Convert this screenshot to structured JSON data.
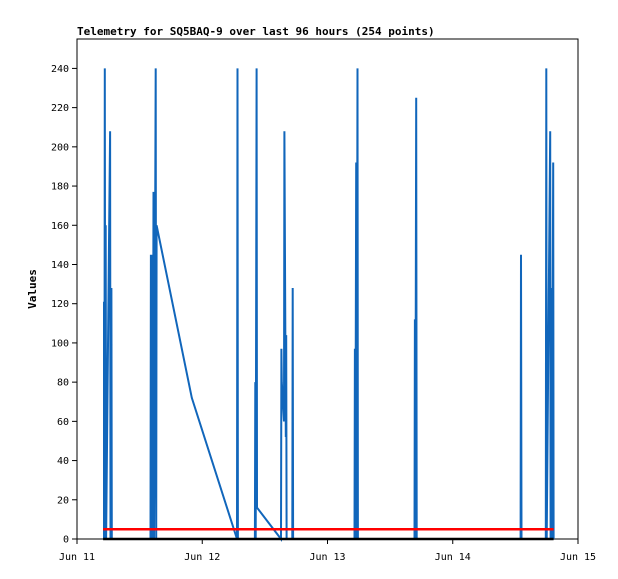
{
  "chart_data": {
    "type": "line",
    "title": "Telemetry for SQ5BAQ-9 over last 96 hours (254 points)",
    "xlabel": "",
    "ylabel": "Values",
    "x_ticks": [
      "Jun 11",
      "Jun 12",
      "Jun 13",
      "Jun 14",
      "Jun 15"
    ],
    "xlim": [
      "2024-06-11T00:00",
      "2024-06-15T00:00"
    ],
    "ylim": [
      0,
      255
    ],
    "y_ticks": [
      0,
      20,
      40,
      60,
      80,
      100,
      120,
      140,
      160,
      180,
      200,
      220,
      240
    ],
    "grid": false,
    "legend": "none",
    "series": [
      {
        "color": "#1166bb",
        "points": [
          [
            "2024-06-11T05:10",
            0
          ],
          [
            "2024-06-11T05:10",
            121
          ],
          [
            "2024-06-11T05:15",
            0
          ],
          [
            "2024-06-11T05:20",
            240
          ],
          [
            "2024-06-11T05:25",
            0
          ],
          [
            "2024-06-11T05:30",
            160
          ],
          [
            "2024-06-11T05:35",
            0
          ],
          [
            "2024-06-11T06:20",
            208
          ],
          [
            "2024-06-11T06:25",
            0
          ],
          [
            "2024-06-11T06:35",
            128
          ],
          [
            "2024-06-11T06:40",
            0
          ],
          [
            "2024-06-11T14:05",
            0
          ],
          [
            "2024-06-11T14:10",
            145
          ],
          [
            "2024-06-11T14:15",
            0
          ],
          [
            "2024-06-11T14:25",
            145
          ],
          [
            "2024-06-11T14:30",
            0
          ],
          [
            "2024-06-11T14:40",
            177
          ],
          [
            "2024-06-11T14:45",
            0
          ],
          [
            "2024-06-11T15:05",
            240
          ],
          [
            "2024-06-11T15:10",
            0
          ],
          [
            "2024-06-11T15:15",
            160
          ],
          [
            "2024-06-11T22:00",
            72
          ],
          [
            "2024-06-12T06:40",
            0
          ],
          [
            "2024-06-12T06:45",
            240
          ],
          [
            "2024-06-12T06:50",
            0
          ],
          [
            "2024-06-12T10:05",
            0
          ],
          [
            "2024-06-12T10:10",
            80
          ],
          [
            "2024-06-12T10:15",
            0
          ],
          [
            "2024-06-12T10:25",
            240
          ],
          [
            "2024-06-12T10:30",
            16
          ],
          [
            "2024-06-12T15:05",
            0
          ],
          [
            "2024-06-12T15:10",
            97
          ],
          [
            "2024-06-12T15:15",
            80
          ],
          [
            "2024-06-12T15:40",
            60
          ],
          [
            "2024-06-12T15:45",
            208
          ],
          [
            "2024-06-12T16:00",
            52
          ],
          [
            "2024-06-12T16:05",
            104
          ],
          [
            "2024-06-12T16:10",
            0
          ],
          [
            "2024-06-12T17:15",
            0
          ],
          [
            "2024-06-12T17:20",
            128
          ],
          [
            "2024-06-12T17:25",
            0
          ],
          [
            "2024-06-13T05:10",
            0
          ],
          [
            "2024-06-13T05:15",
            97
          ],
          [
            "2024-06-13T05:20",
            0
          ],
          [
            "2024-06-13T05:30",
            192
          ],
          [
            "2024-06-13T05:35",
            0
          ],
          [
            "2024-06-13T05:45",
            240
          ],
          [
            "2024-06-13T05:50",
            0
          ],
          [
            "2024-06-13T16:40",
            0
          ],
          [
            "2024-06-13T16:45",
            112
          ],
          [
            "2024-06-13T16:50",
            0
          ],
          [
            "2024-06-13T17:00",
            225
          ],
          [
            "2024-06-13T17:05",
            0
          ],
          [
            "2024-06-14T13:00",
            0
          ],
          [
            "2024-06-14T13:05",
            145
          ],
          [
            "2024-06-14T13:10",
            0
          ],
          [
            "2024-06-14T17:50",
            0
          ],
          [
            "2024-06-14T17:55",
            240
          ],
          [
            "2024-06-14T18:00",
            0
          ],
          [
            "2024-06-14T18:40",
            208
          ],
          [
            "2024-06-14T18:45",
            0
          ],
          [
            "2024-06-14T18:55",
            128
          ],
          [
            "2024-06-14T19:00",
            0
          ],
          [
            "2024-06-14T19:15",
            192
          ],
          [
            "2024-06-14T19:20",
            0
          ]
        ]
      },
      {
        "color": "#ff0000",
        "points": [
          [
            "2024-06-11T05:00",
            5
          ],
          [
            "2024-06-14T19:20",
            5
          ]
        ]
      },
      {
        "color": "#000000",
        "points": [
          [
            "2024-06-11T05:00",
            0
          ],
          [
            "2024-06-14T19:20",
            0
          ]
        ]
      }
    ]
  }
}
